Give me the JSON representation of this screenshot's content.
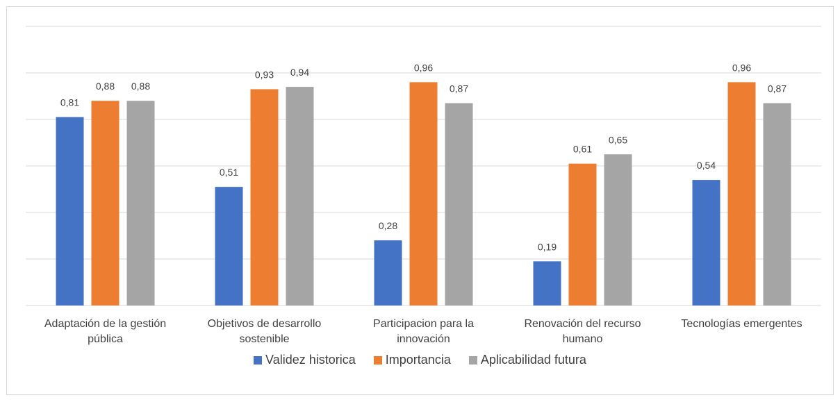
{
  "chart_data": {
    "type": "bar",
    "categories": [
      "Adaptación de la gestión pública",
      "Objetivos de desarrollo sostenible",
      "Participacion para la innovación",
      "Renovación del recurso humano",
      "Tecnologías emergentes"
    ],
    "series": [
      {
        "name": "Validez historica",
        "color": "#4472c4",
        "values": [
          0.81,
          0.51,
          0.28,
          0.19,
          0.54
        ],
        "value_labels": [
          "0,81",
          "0,51",
          "0,28",
          "0,19",
          "0,54"
        ]
      },
      {
        "name": "Importancia",
        "color": "#ed7d31",
        "values": [
          0.88,
          0.93,
          0.96,
          0.61,
          0.96
        ],
        "value_labels": [
          "0,88",
          "0,93",
          "0,96",
          "0,61",
          "0,96"
        ]
      },
      {
        "name": "Aplicabilidad futura",
        "color": "#a5a5a5",
        "values": [
          0.88,
          0.94,
          0.87,
          0.65,
          0.87
        ],
        "value_labels": [
          "0,88",
          "0,94",
          "0,87",
          "0,65",
          "0,87"
        ]
      }
    ],
    "ylim": [
      0,
      1.2
    ],
    "yticks": [
      0,
      0.2,
      0.4,
      0.6,
      0.8,
      1.0,
      1.2
    ],
    "grid": true,
    "legend": "bottom"
  }
}
